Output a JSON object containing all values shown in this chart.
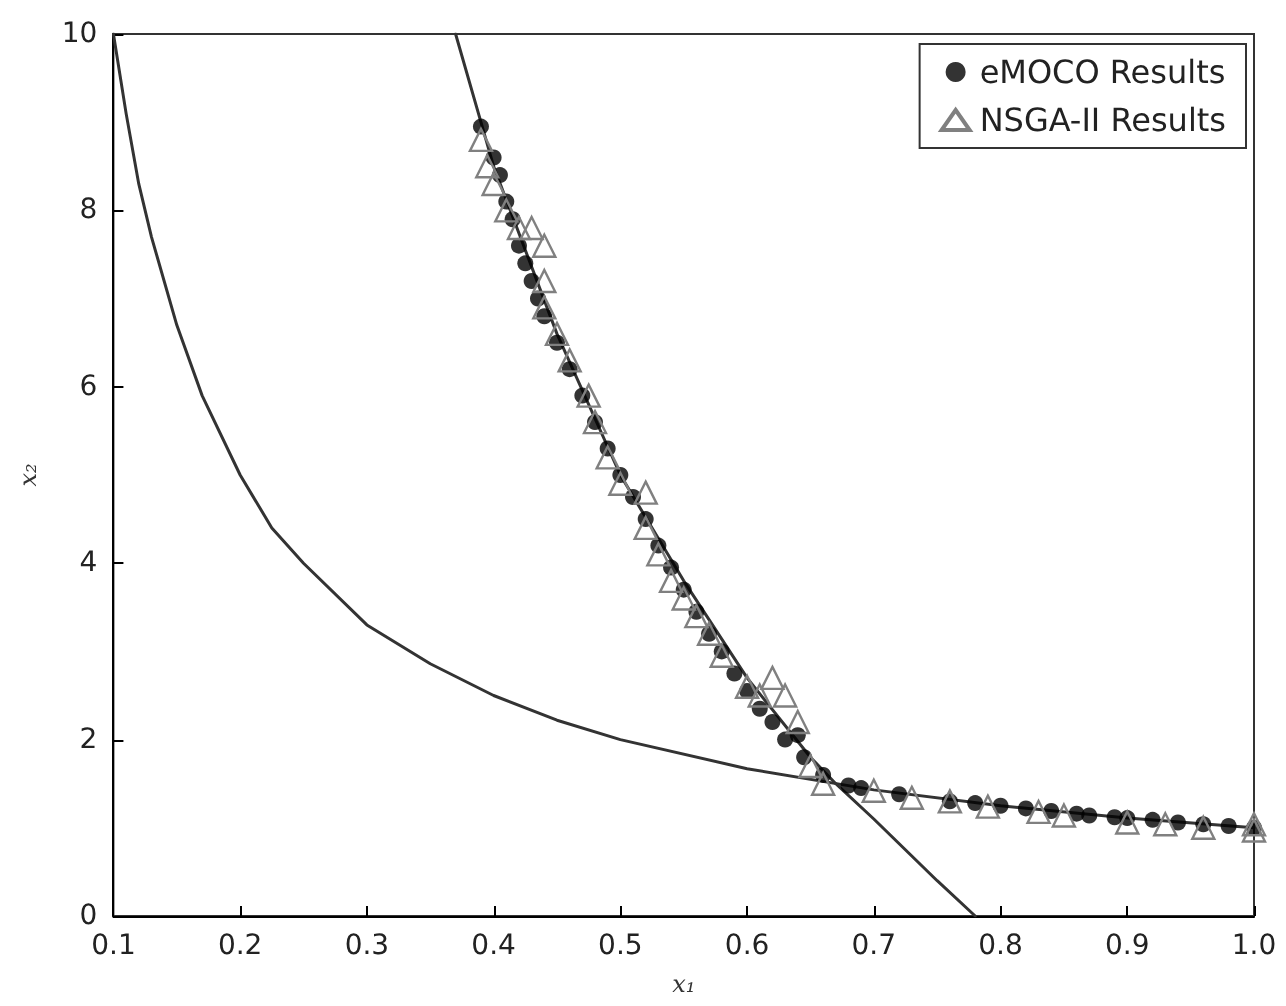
{
  "chart_data": {
    "type": "scatter",
    "xlabel": "x₁",
    "ylabel": "x₂",
    "xlim": [
      0.1,
      1.0
    ],
    "ylim": [
      0,
      10
    ],
    "xticks": [
      0.1,
      0.2,
      0.3,
      0.4,
      0.5,
      0.6,
      0.7,
      0.8,
      0.9,
      {
        "value": 1.0,
        "label": "1.0"
      }
    ],
    "yticks": [
      0,
      2,
      4,
      6,
      8,
      10
    ],
    "grid": false,
    "legend": "top right",
    "series": [
      {
        "type": "line",
        "color": "#333333",
        "marker": "none",
        "x": [
          0.1,
          0.11,
          0.12,
          0.13,
          0.15,
          0.17,
          0.2,
          0.225,
          0.25,
          0.3,
          0.35,
          0.4,
          0.45,
          0.5,
          0.6,
          0.7,
          0.8,
          0.9,
          1.0
        ],
        "values": [
          10,
          9.1,
          8.3,
          7.7,
          6.7,
          5.9,
          5.0,
          4.4,
          4.0,
          3.3,
          2.86,
          2.5,
          2.22,
          2.0,
          1.67,
          1.43,
          1.25,
          1.11,
          1.0
        ]
      },
      {
        "type": "line",
        "color": "#333333",
        "marker": "none",
        "x": [
          0.37,
          0.39,
          0.4,
          0.45,
          0.5,
          0.55,
          0.6,
          0.65,
          0.67,
          0.7,
          0.75,
          0.78
        ],
        "values": [
          10,
          9.0,
          8.5,
          6.6,
          5.0,
          3.8,
          2.7,
          1.8,
          1.5,
          1.1,
          0.4,
          0
        ]
      },
      {
        "name": "eMOCO Results",
        "color": "#000000",
        "marker": "circle",
        "x": [
          0.39,
          0.4,
          0.405,
          0.41,
          0.415,
          0.42,
          0.425,
          0.43,
          0.435,
          0.44,
          0.45,
          0.46,
          0.47,
          0.48,
          0.49,
          0.5,
          0.51,
          0.52,
          0.53,
          0.54,
          0.55,
          0.56,
          0.57,
          0.58,
          0.59,
          0.6,
          0.61,
          0.62,
          0.63,
          0.64,
          0.645,
          0.66,
          0.68,
          0.69,
          0.72,
          0.76,
          0.78,
          0.8,
          0.82,
          0.84,
          0.86,
          0.87,
          0.89,
          0.9,
          0.92,
          0.94,
          0.96,
          0.98,
          1.0
        ],
        "values": [
          8.95,
          8.6,
          8.4,
          8.1,
          7.9,
          7.6,
          7.4,
          7.2,
          7.0,
          6.8,
          6.5,
          6.2,
          5.9,
          5.6,
          5.3,
          5.0,
          4.75,
          4.5,
          4.2,
          3.95,
          3.7,
          3.45,
          3.2,
          3.0,
          2.75,
          2.55,
          2.35,
          2.2,
          2.0,
          2.05,
          1.8,
          1.6,
          1.48,
          1.45,
          1.38,
          1.3,
          1.28,
          1.25,
          1.22,
          1.19,
          1.16,
          1.14,
          1.12,
          1.11,
          1.09,
          1.06,
          1.04,
          1.02,
          1.0
        ]
      },
      {
        "name": "NSGA-II Results",
        "color": "#808080",
        "marker": "triangle",
        "x": [
          0.39,
          0.395,
          0.4,
          0.41,
          0.42,
          0.43,
          0.44,
          0.44,
          0.44,
          0.45,
          0.46,
          0.475,
          0.48,
          0.49,
          0.5,
          0.52,
          0.52,
          0.53,
          0.54,
          0.55,
          0.56,
          0.57,
          0.58,
          0.6,
          0.61,
          0.62,
          0.63,
          0.64,
          0.65,
          0.66,
          0.7,
          0.73,
          0.76,
          0.79,
          0.83,
          0.85,
          0.9,
          0.93,
          0.96,
          1.0,
          1.0
        ],
        "values": [
          8.8,
          8.5,
          8.3,
          8.0,
          7.8,
          7.8,
          7.6,
          7.2,
          6.9,
          6.6,
          6.3,
          5.9,
          5.6,
          5.2,
          4.9,
          4.8,
          4.4,
          4.1,
          3.8,
          3.6,
          3.4,
          3.2,
          2.95,
          2.6,
          2.5,
          2.7,
          2.5,
          2.2,
          1.7,
          1.5,
          1.42,
          1.34,
          1.3,
          1.24,
          1.18,
          1.14,
          1.06,
          1.04,
          1.0,
          0.97,
          1.04
        ]
      }
    ]
  }
}
